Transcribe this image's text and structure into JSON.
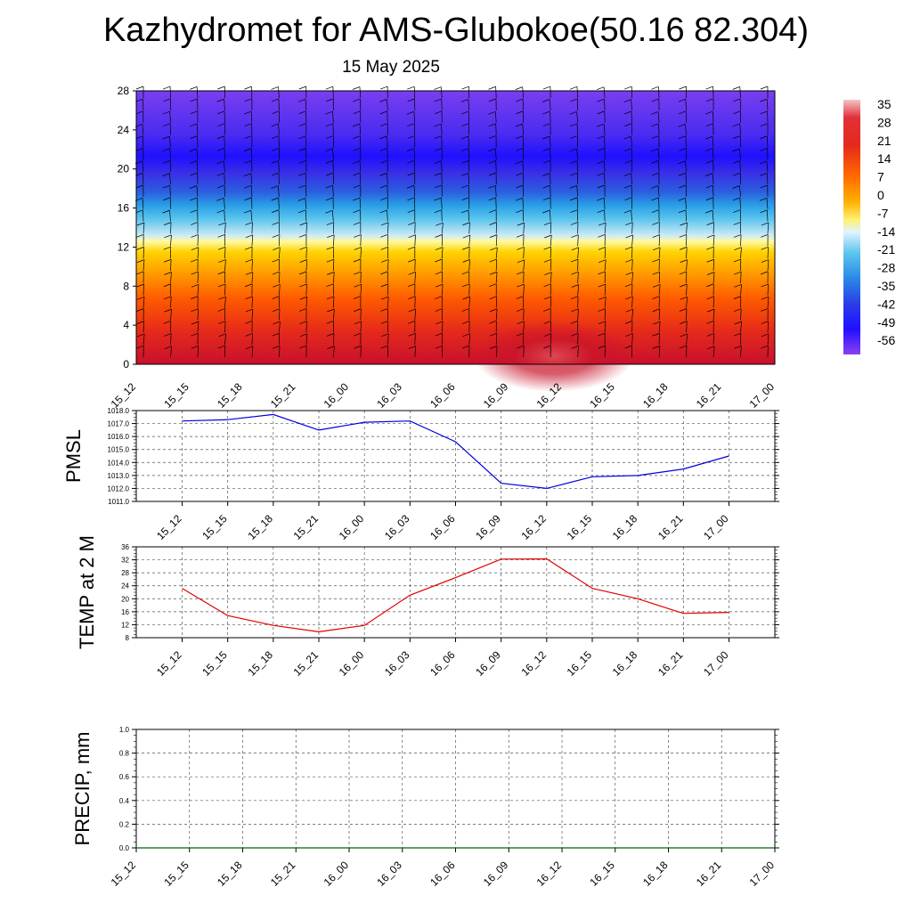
{
  "header": {
    "title": "Kazhydromet for AMS-Glubokoe(50.16 82.304)",
    "subtitle": "15 May 2025"
  },
  "colors": {
    "pmsl_line": "#0000e0",
    "temp_line": "#e00000",
    "precip_line": "#006400",
    "grid": "#555555"
  },
  "chart_data": [
    {
      "type": "heatmap",
      "description_id": "upper-air",
      "x": [
        "15_12",
        "15_15",
        "15_18",
        "15_21",
        "16_00",
        "16_03",
        "16_06",
        "16_09",
        "16_12",
        "16_15",
        "16_18",
        "16_21",
        "17_00"
      ],
      "y_ticks": [
        0,
        4,
        8,
        12,
        16,
        20,
        24,
        28
      ],
      "ylim": [
        0,
        28
      ],
      "colorbar": {
        "labels": [
          35,
          28,
          21,
          14,
          7,
          0,
          -7,
          -14,
          -21,
          -28,
          -35,
          -42,
          -49,
          -56
        ],
        "range": [
          -60,
          38
        ]
      },
      "overlay": "wind barbs"
    },
    {
      "type": "line",
      "ylabel": "PMSL",
      "x": [
        "15_12",
        "15_15",
        "15_18",
        "15_21",
        "16_00",
        "16_03",
        "16_06",
        "16_09",
        "16_12",
        "16_15",
        "16_18",
        "16_21",
        "17_00"
      ],
      "y_ticks": [
        "1011.0",
        "1012.0",
        "1013.0",
        "1014.0",
        "1015.0",
        "1016.0",
        "1017.0",
        "1018.0"
      ],
      "ylim": [
        1011,
        1018
      ],
      "series": [
        {
          "values": [
            1017.2,
            1017.3,
            1017.7,
            1016.5,
            1017.1,
            1017.2,
            1015.6,
            1012.4,
            1012.0,
            1012.9,
            1013.0,
            1013.5,
            1014.5
          ]
        }
      ],
      "grid": true
    },
    {
      "type": "line",
      "ylabel": "TEMP at 2 M",
      "x": [
        "15_12",
        "15_15",
        "15_18",
        "15_21",
        "16_00",
        "16_03",
        "16_06",
        "16_09",
        "16_12",
        "16_15",
        "16_18",
        "16_21",
        "17_00"
      ],
      "y_ticks": [
        "8",
        "12",
        "16",
        "20",
        "24",
        "28",
        "32",
        "36"
      ],
      "ylim": [
        8,
        36
      ],
      "series": [
        {
          "values": [
            23.2,
            14.8,
            11.8,
            9.8,
            11.8,
            21.1,
            26.5,
            32.2,
            32.3,
            23.2,
            20.0,
            15.5,
            15.8
          ]
        }
      ],
      "grid": true
    },
    {
      "type": "line",
      "ylabel": "PRECIP, mm",
      "x": [
        "15_12",
        "15_15",
        "15_18",
        "15_21",
        "16_00",
        "16_03",
        "16_06",
        "16_09",
        "16_12",
        "16_15",
        "16_18",
        "16_21",
        "17_00"
      ],
      "y_ticks": [
        "0.0",
        "0.2",
        "0.4",
        "0.6",
        "0.8",
        "1.0"
      ],
      "ylim": [
        0,
        1
      ],
      "series": [
        {
          "values": [
            0,
            0,
            0,
            0,
            0,
            0,
            0,
            0,
            0,
            0,
            0,
            0,
            0
          ]
        }
      ],
      "grid": true
    }
  ]
}
